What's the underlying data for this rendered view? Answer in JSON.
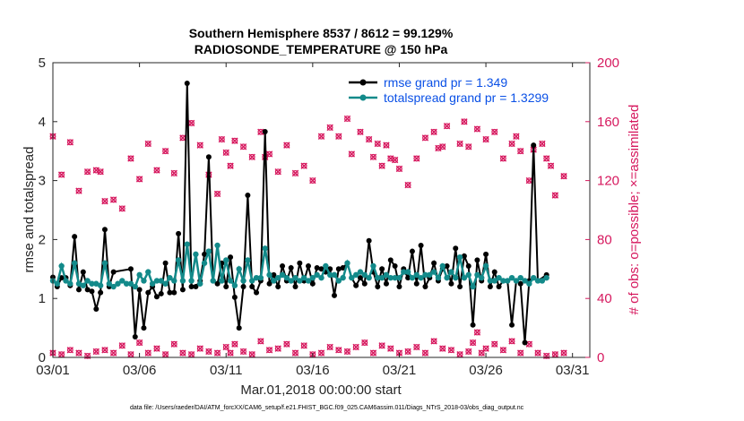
{
  "colors": {
    "rmse": "#000000",
    "spread": "#138a8a",
    "obs": "#d6185e",
    "legend_text": "#0a50e6"
  },
  "chart_data": {
    "type": "line",
    "title": "Southern Hemisphere 8537 / 8612 = 99.129%",
    "subtitle": "RADIOSONDE_TEMPERATURE @ 150 hPa",
    "xlabel": "Mar.01,2018 00:00:00 start",
    "ylabel_left": "rmse and totalspread",
    "ylabel_right": "# of obs: o=possible; ×=assimilated",
    "footnote": "data file: /Users/raeder/DAI/ATM_forcXX/CAM6_setup/f.e21.FHIST_BGC.f09_025.CAM6assim.011/Diags_NTrS_2018-03/obs_diag_output.nc",
    "xlim": [
      1,
      32
    ],
    "ylim_left": [
      0,
      5
    ],
    "ylim_right": [
      0,
      200
    ],
    "xticks": [
      1,
      6,
      11,
      16,
      21,
      26,
      31
    ],
    "xtick_labels": [
      "03/01",
      "03/06",
      "03/11",
      "03/16",
      "03/21",
      "03/26",
      "03/31"
    ],
    "yticks_left": [
      "0",
      "1",
      "2",
      "3",
      "4",
      "5"
    ],
    "yticks_right": [
      "0",
      "40",
      "80",
      "120",
      "160",
      "200"
    ],
    "legend": {
      "rmse": "rmse grand pr = 1.349",
      "spread": "totalspread grand pr = 1.3299"
    },
    "rmse_points": [
      [
        1.0,
        1.36
      ],
      [
        1.25,
        1.2
      ],
      [
        1.5,
        1.35
      ],
      [
        1.75,
        1.35
      ],
      [
        2.0,
        1.22
      ],
      [
        2.25,
        2.05
      ],
      [
        2.5,
        1.15
      ],
      [
        2.75,
        1.45
      ],
      [
        3.0,
        1.15
      ],
      [
        3.25,
        1.12
      ],
      [
        3.5,
        0.82
      ],
      [
        3.75,
        1.1
      ],
      [
        4.0,
        2.17
      ],
      [
        4.25,
        1.2
      ],
      [
        4.5,
        1.45
      ],
      [
        5.5,
        1.5
      ],
      [
        5.75,
        0.35
      ],
      [
        6.0,
        1.15
      ],
      [
        6.25,
        0.5
      ],
      [
        6.5,
        1.1
      ],
      [
        6.75,
        1.2
      ],
      [
        7.0,
        1.03
      ],
      [
        7.25,
        1.08
      ],
      [
        7.5,
        1.6
      ],
      [
        7.75,
        1.1
      ],
      [
        8.0,
        1.1
      ],
      [
        8.25,
        2.1
      ],
      [
        8.5,
        1.15
      ],
      [
        8.75,
        4.65
      ],
      [
        9.0,
        1.2
      ],
      [
        9.25,
        1.2
      ],
      [
        9.5,
        1.3
      ],
      [
        9.75,
        1.75
      ],
      [
        10.0,
        3.4
      ],
      [
        10.25,
        1.3
      ],
      [
        10.5,
        1.25
      ],
      [
        10.75,
        1.6
      ],
      [
        11.0,
        1.2
      ],
      [
        11.25,
        1.7
      ],
      [
        11.5,
        1.02
      ],
      [
        11.75,
        0.5
      ],
      [
        12.0,
        1.2
      ],
      [
        12.25,
        2.75
      ],
      [
        12.5,
        1.2
      ],
      [
        12.75,
        1.1
      ],
      [
        13.0,
        1.3
      ],
      [
        13.25,
        3.83
      ],
      [
        13.5,
        1.25
      ],
      [
        13.75,
        1.4
      ],
      [
        14.0,
        1.2
      ],
      [
        14.25,
        1.55
      ],
      [
        14.5,
        1.3
      ],
      [
        14.75,
        1.52
      ],
      [
        15.0,
        1.2
      ],
      [
        15.25,
        1.6
      ],
      [
        15.5,
        1.3
      ],
      [
        15.75,
        1.55
      ],
      [
        16.0,
        1.25
      ],
      [
        16.25,
        1.52
      ],
      [
        16.5,
        1.5
      ],
      [
        16.75,
        1.45
      ],
      [
        17.0,
        1.5
      ],
      [
        17.25,
        1.05
      ],
      [
        17.5,
        1.5
      ],
      [
        17.75,
        1.52
      ],
      [
        18.0,
        1.6
      ],
      [
        18.25,
        1.35
      ],
      [
        18.5,
        1.22
      ],
      [
        18.75,
        1.35
      ],
      [
        19.0,
        1.25
      ],
      [
        19.25,
        1.98
      ],
      [
        19.5,
        1.45
      ],
      [
        19.75,
        1.2
      ],
      [
        20.0,
        1.5
      ],
      [
        20.25,
        1.25
      ],
      [
        20.5,
        1.65
      ],
      [
        20.75,
        1.55
      ],
      [
        21.0,
        1.2
      ],
      [
        21.25,
        1.5
      ],
      [
        21.5,
        1.35
      ],
      [
        21.75,
        1.8
      ],
      [
        22.0,
        1.25
      ],
      [
        22.25,
        1.9
      ],
      [
        22.5,
        1.2
      ],
      [
        22.75,
        1.35
      ],
      [
        23.0,
        1.6
      ],
      [
        23.25,
        1.3
      ],
      [
        23.5,
        1.5
      ],
      [
        23.75,
        1.55
      ],
      [
        24.0,
        1.25
      ],
      [
        24.25,
        1.85
      ],
      [
        24.5,
        1.2
      ],
      [
        24.75,
        1.72
      ],
      [
        25.0,
        1.55
      ],
      [
        25.25,
        0.55
      ],
      [
        25.5,
        1.65
      ],
      [
        25.75,
        1.3
      ],
      [
        26.0,
        1.75
      ],
      [
        26.25,
        1.2
      ],
      [
        26.5,
        1.45
      ],
      [
        26.75,
        1.2
      ],
      [
        27.0,
        1.3
      ],
      [
        27.25,
        1.3
      ],
      [
        27.5,
        0.55
      ],
      [
        27.75,
        1.3
      ],
      [
        28.0,
        1.25
      ],
      [
        28.25,
        0.25
      ],
      [
        28.5,
        1.3
      ],
      [
        28.75,
        3.6
      ],
      [
        29.0,
        1.3
      ],
      [
        29.5,
        1.4
      ]
    ],
    "spread_points": [
      [
        1.0,
        1.3
      ],
      [
        1.25,
        1.25
      ],
      [
        1.5,
        1.55
      ],
      [
        1.75,
        1.3
      ],
      [
        2.0,
        1.25
      ],
      [
        2.25,
        1.6
      ],
      [
        2.5,
        1.25
      ],
      [
        2.75,
        1.22
      ],
      [
        3.0,
        1.3
      ],
      [
        3.25,
        1.25
      ],
      [
        3.5,
        1.25
      ],
      [
        3.75,
        1.22
      ],
      [
        4.0,
        1.6
      ],
      [
        4.25,
        1.25
      ],
      [
        4.5,
        1.2
      ],
      [
        4.75,
        1.25
      ],
      [
        5.0,
        1.3
      ],
      [
        5.25,
        1.25
      ],
      [
        5.5,
        1.25
      ],
      [
        5.75,
        1.2
      ],
      [
        6.0,
        1.4
      ],
      [
        6.25,
        1.3
      ],
      [
        6.5,
        1.45
      ],
      [
        6.75,
        1.25
      ],
      [
        7.0,
        1.3
      ],
      [
        7.25,
        1.3
      ],
      [
        7.5,
        1.25
      ],
      [
        7.75,
        1.35
      ],
      [
        8.0,
        1.3
      ],
      [
        8.25,
        1.65
      ],
      [
        8.5,
        1.3
      ],
      [
        8.75,
        1.92
      ],
      [
        9.0,
        1.3
      ],
      [
        9.25,
        1.75
      ],
      [
        9.5,
        1.25
      ],
      [
        9.75,
        1.6
      ],
      [
        10.0,
        1.8
      ],
      [
        10.25,
        1.3
      ],
      [
        10.5,
        1.9
      ],
      [
        10.75,
        1.3
      ],
      [
        11.0,
        1.65
      ],
      [
        11.25,
        1.3
      ],
      [
        11.5,
        1.22
      ],
      [
        11.75,
        1.5
      ],
      [
        12.0,
        1.3
      ],
      [
        12.25,
        1.65
      ],
      [
        12.5,
        1.3
      ],
      [
        12.75,
        1.35
      ],
      [
        13.0,
        1.35
      ],
      [
        13.25,
        1.85
      ],
      [
        13.5,
        1.4
      ],
      [
        13.75,
        1.3
      ],
      [
        14.0,
        1.35
      ],
      [
        14.25,
        1.4
      ],
      [
        14.5,
        1.35
      ],
      [
        14.75,
        1.3
      ],
      [
        15.0,
        1.35
      ],
      [
        15.25,
        1.3
      ],
      [
        15.5,
        1.35
      ],
      [
        15.75,
        1.3
      ],
      [
        16.0,
        1.35
      ],
      [
        16.25,
        1.4
      ],
      [
        16.5,
        1.35
      ],
      [
        16.75,
        1.55
      ],
      [
        17.0,
        1.4
      ],
      [
        17.25,
        1.4
      ],
      [
        17.5,
        1.3
      ],
      [
        17.75,
        1.35
      ],
      [
        18.0,
        1.6
      ],
      [
        18.25,
        1.35
      ],
      [
        18.5,
        1.4
      ],
      [
        18.75,
        1.45
      ],
      [
        19.0,
        1.4
      ],
      [
        19.25,
        1.35
      ],
      [
        19.5,
        1.55
      ],
      [
        19.75,
        1.35
      ],
      [
        20.0,
        1.35
      ],
      [
        20.25,
        1.4
      ],
      [
        20.5,
        1.35
      ],
      [
        20.75,
        1.35
      ],
      [
        21.0,
        1.35
      ],
      [
        21.25,
        1.45
      ],
      [
        21.5,
        1.45
      ],
      [
        21.75,
        1.35
      ],
      [
        22.0,
        1.4
      ],
      [
        22.25,
        1.35
      ],
      [
        22.5,
        1.4
      ],
      [
        22.75,
        1.4
      ],
      [
        23.0,
        1.45
      ],
      [
        23.25,
        1.35
      ],
      [
        23.5,
        1.55
      ],
      [
        23.75,
        1.35
      ],
      [
        24.0,
        1.45
      ],
      [
        24.25,
        1.35
      ],
      [
        24.5,
        1.7
      ],
      [
        24.75,
        1.35
      ],
      [
        25.0,
        1.4
      ],
      [
        25.25,
        1.2
      ],
      [
        25.5,
        1.4
      ],
      [
        25.75,
        1.35
      ],
      [
        26.0,
        1.55
      ],
      [
        26.25,
        1.3
      ],
      [
        26.5,
        1.3
      ],
      [
        26.75,
        1.35
      ],
      [
        27.0,
        1.3
      ],
      [
        27.25,
        1.3
      ],
      [
        27.5,
        1.35
      ],
      [
        27.75,
        1.3
      ],
      [
        28.0,
        1.35
      ],
      [
        28.25,
        1.3
      ],
      [
        28.5,
        1.25
      ],
      [
        28.75,
        1.35
      ],
      [
        29.0,
        1.3
      ],
      [
        29.25,
        1.3
      ],
      [
        29.5,
        1.35
      ]
    ],
    "obs_high": [
      [
        1.0,
        150
      ],
      [
        1.5,
        124
      ],
      [
        2.0,
        146
      ],
      [
        2.5,
        113
      ],
      [
        3.0,
        126
      ],
      [
        3.5,
        127
      ],
      [
        3.75,
        126
      ],
      [
        4.0,
        106
      ],
      [
        4.5,
        107
      ],
      [
        5.0,
        101
      ],
      [
        5.5,
        135
      ],
      [
        6.0,
        121
      ],
      [
        6.5,
        145
      ],
      [
        7.0,
        127
      ],
      [
        7.5,
        140
      ],
      [
        8.0,
        125
      ],
      [
        8.5,
        149
      ],
      [
        9.0,
        159
      ],
      [
        9.5,
        144
      ],
      [
        10.0,
        124
      ],
      [
        10.5,
        111
      ],
      [
        10.75,
        148
      ],
      [
        11.0,
        139
      ],
      [
        11.25,
        130
      ],
      [
        11.5,
        147
      ],
      [
        12.0,
        143
      ],
      [
        12.5,
        136
      ],
      [
        13.0,
        153
      ],
      [
        13.25,
        136
      ],
      [
        13.5,
        138
      ],
      [
        14.0,
        126
      ],
      [
        14.5,
        144
      ],
      [
        15.0,
        125
      ],
      [
        15.5,
        130
      ],
      [
        16.0,
        120
      ],
      [
        16.5,
        150
      ],
      [
        17.0,
        156
      ],
      [
        17.5,
        150
      ],
      [
        18.0,
        162
      ],
      [
        18.25,
        138
      ],
      [
        18.75,
        153
      ],
      [
        19.25,
        148
      ],
      [
        19.5,
        136
      ],
      [
        19.75,
        145
      ],
      [
        20.0,
        130
      ],
      [
        20.25,
        144
      ],
      [
        20.5,
        135
      ],
      [
        20.75,
        134
      ],
      [
        21.0,
        128
      ],
      [
        21.5,
        117
      ],
      [
        22.0,
        135
      ],
      [
        22.5,
        149
      ],
      [
        23.0,
        153
      ],
      [
        23.25,
        142
      ],
      [
        23.5,
        143
      ],
      [
        23.75,
        157
      ],
      [
        24.5,
        145
      ],
      [
        24.75,
        160
      ],
      [
        25.0,
        143
      ],
      [
        25.5,
        155
      ],
      [
        26.0,
        148
      ],
      [
        26.5,
        153
      ],
      [
        27.0,
        135
      ],
      [
        27.5,
        145
      ],
      [
        27.75,
        150
      ],
      [
        28.0,
        140
      ],
      [
        28.5,
        120
      ],
      [
        28.75,
        141
      ],
      [
        29.25,
        145
      ],
      [
        29.5,
        135
      ],
      [
        29.75,
        130
      ],
      [
        30.0,
        110
      ],
      [
        30.5,
        123
      ]
    ],
    "obs_low": [
      [
        1.0,
        3
      ],
      [
        1.5,
        2
      ],
      [
        2.0,
        5
      ],
      [
        2.5,
        3
      ],
      [
        3.0,
        1
      ],
      [
        3.5,
        4
      ],
      [
        4.0,
        5
      ],
      [
        4.5,
        3
      ],
      [
        5.0,
        8
      ],
      [
        5.5,
        2
      ],
      [
        6.0,
        10
      ],
      [
        6.5,
        3
      ],
      [
        7.0,
        6
      ],
      [
        7.5,
        2
      ],
      [
        8.0,
        9
      ],
      [
        8.5,
        3
      ],
      [
        9.0,
        2
      ],
      [
        9.5,
        6
      ],
      [
        10.0,
        4
      ],
      [
        10.5,
        3
      ],
      [
        11.0,
        7
      ],
      [
        11.25,
        3
      ],
      [
        11.5,
        9
      ],
      [
        12.0,
        4
      ],
      [
        12.5,
        2
      ],
      [
        13.0,
        11
      ],
      [
        13.5,
        5
      ],
      [
        14.0,
        6
      ],
      [
        14.5,
        9
      ],
      [
        15.0,
        3
      ],
      [
        15.5,
        8
      ],
      [
        16.0,
        2
      ],
      [
        16.5,
        3
      ],
      [
        17.0,
        7
      ],
      [
        17.5,
        5
      ],
      [
        18.0,
        4
      ],
      [
        18.5,
        7
      ],
      [
        19.0,
        10
      ],
      [
        19.5,
        3
      ],
      [
        20.0,
        8
      ],
      [
        20.5,
        6
      ],
      [
        21.0,
        3
      ],
      [
        21.5,
        4
      ],
      [
        22.0,
        7
      ],
      [
        22.5,
        3
      ],
      [
        23.0,
        11
      ],
      [
        23.5,
        6
      ],
      [
        24.0,
        5
      ],
      [
        24.5,
        2
      ],
      [
        25.0,
        4
      ],
      [
        25.25,
        10
      ],
      [
        25.5,
        17
      ],
      [
        25.75,
        3
      ],
      [
        26.0,
        6
      ],
      [
        26.5,
        9
      ],
      [
        27.0,
        5
      ],
      [
        27.5,
        11
      ],
      [
        28.0,
        3
      ],
      [
        28.5,
        9
      ],
      [
        29.0,
        3
      ],
      [
        29.5,
        1
      ],
      [
        30.0,
        2
      ],
      [
        30.5,
        3
      ]
    ]
  }
}
